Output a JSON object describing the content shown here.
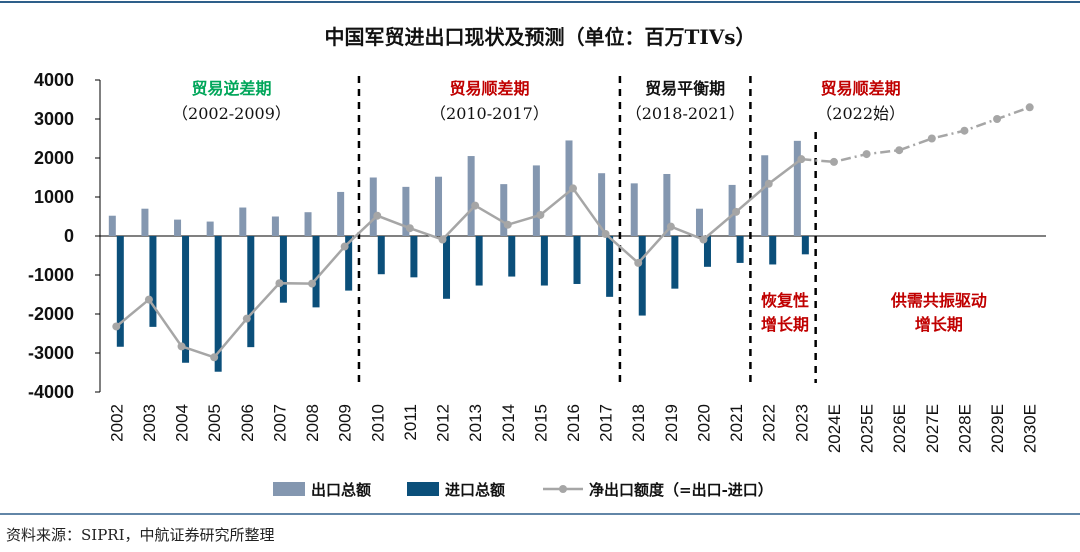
{
  "title": "中国军贸进出口现状及预测（单位：百万TIVs）",
  "source": "资料来源：SIPRI，中航证券研究所整理",
  "colors": {
    "export": "#8497b0",
    "import": "#0b4f7a",
    "net": "#a6a6a6",
    "green": "#00a65a",
    "red": "#c00000",
    "black": "#111111",
    "rule": "#2e5f8a"
  },
  "chart_data": {
    "type": "bar",
    "categories": [
      "2002",
      "2003",
      "2004",
      "2005",
      "2006",
      "2007",
      "2008",
      "2009",
      "2010",
      "2011",
      "2012",
      "2013",
      "2014",
      "2015",
      "2016",
      "2017",
      "2018",
      "2019",
      "2020",
      "2021",
      "2022",
      "2023",
      "2024E",
      "2025E",
      "2026E",
      "2027E",
      "2028E",
      "2029E",
      "2030E"
    ],
    "ylim": [
      -4000,
      4000
    ],
    "yticks": [
      "4000",
      "3000",
      "2000",
      "1000",
      "0",
      "-1000",
      "-2000",
      "-3000",
      "-4000"
    ],
    "series": [
      {
        "name": "出口总额",
        "type": "bar",
        "values": [
          520,
          700,
          420,
          370,
          730,
          500,
          610,
          1130,
          1500,
          1260,
          1520,
          2050,
          1330,
          1810,
          2450,
          1610,
          1350,
          1590,
          700,
          1310,
          2070,
          2440,
          null,
          null,
          null,
          null,
          null,
          null,
          null
        ]
      },
      {
        "name": "进口总额",
        "type": "bar",
        "values": [
          -2840,
          -2330,
          -3250,
          -3480,
          -2850,
          -1710,
          -1830,
          -1400,
          -980,
          -1060,
          -1610,
          -1270,
          -1040,
          -1270,
          -1230,
          -1560,
          -2040,
          -1350,
          -790,
          -690,
          -730,
          -470,
          null,
          null,
          null,
          null,
          null,
          null,
          null
        ]
      },
      {
        "name": "净出口额度（=出口-进口）",
        "type": "line",
        "values": [
          -2320,
          -1630,
          -2830,
          -3110,
          -2120,
          -1210,
          -1220,
          -270,
          520,
          200,
          -90,
          780,
          290,
          540,
          1220,
          50,
          -690,
          240,
          -90,
          620,
          1340,
          1970,
          null,
          null,
          null,
          null,
          null,
          null,
          null
        ]
      },
      {
        "name": "forecast",
        "type": "line",
        "dashed": true,
        "values": [
          null,
          null,
          null,
          null,
          null,
          null,
          null,
          null,
          null,
          null,
          null,
          null,
          null,
          null,
          null,
          null,
          null,
          null,
          null,
          null,
          null,
          1970,
          1900,
          2100,
          2200,
          2500,
          2700,
          3000,
          3300
        ]
      }
    ],
    "dividers_after": [
      "2009",
      "2017",
      "2021",
      "2023"
    ],
    "phases": [
      {
        "title": "贸易逆差期",
        "sub": "（2002-2009）",
        "color": "green"
      },
      {
        "title": "贸易顺差期",
        "sub": "（2010-2017）",
        "color": "red"
      },
      {
        "title": "贸易平衡期",
        "sub": "（2018-2021）",
        "color": "black"
      },
      {
        "title": "贸易顺差期",
        "sub": "（2022始）",
        "color": "red"
      }
    ],
    "annotations": [
      {
        "lines": [
          "恢复性",
          "增长期"
        ],
        "color": "red"
      },
      {
        "lines": [
          "供需共振驱动",
          "增长期"
        ],
        "color": "red"
      }
    ],
    "legend": {
      "position": "bottom",
      "items": [
        "出口总额",
        "进口总额",
        "净出口额度（=出口-进口）"
      ]
    }
  }
}
